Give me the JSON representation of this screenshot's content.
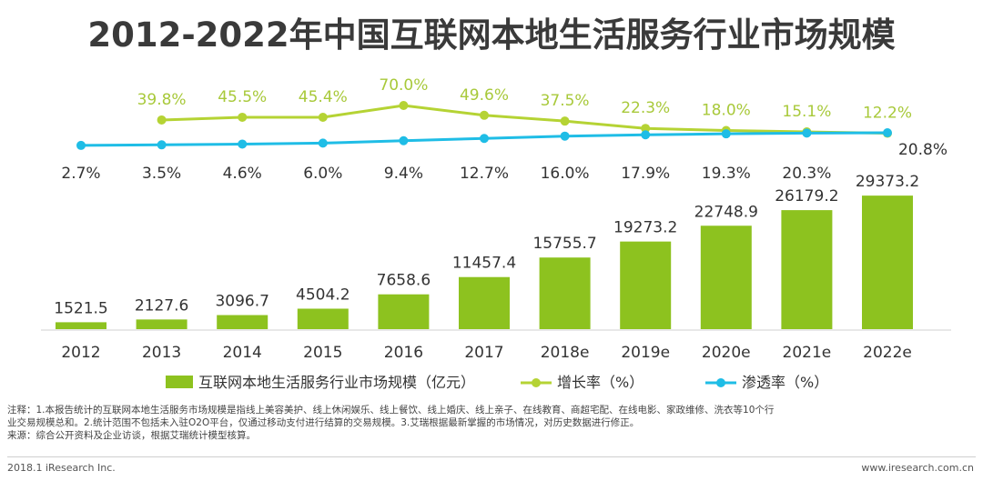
{
  "title": "2012-2022年中国互联网本地生活服务行业市场规模",
  "colors": {
    "bar": "#8dc21f",
    "growth_line": "#b5d334",
    "penetration_line": "#1fbde6",
    "growth_label": "#a8c93a",
    "text": "#333333"
  },
  "chart_data": {
    "type": "bar",
    "categories": [
      "2012",
      "2013",
      "2014",
      "2015",
      "2016",
      "2017",
      "2018e",
      "2019e",
      "2020e",
      "2021e",
      "2022e"
    ],
    "series": [
      {
        "name": "互联网本地生活服务行业市场规模（亿元）",
        "type": "bar",
        "values": [
          1521.5,
          2127.6,
          3096.7,
          4504.2,
          7658.6,
          11457.4,
          15755.7,
          19273.2,
          22748.9,
          26179.2,
          29373.2
        ],
        "labels": [
          "1521.5",
          "2127.6",
          "3096.7",
          "4504.2",
          "7658.6",
          "11457.4",
          "15755.7",
          "19273.2",
          "22748.9",
          "26179.2",
          "29373.2"
        ]
      },
      {
        "name": "增长率（%）",
        "type": "line",
        "values": [
          null,
          39.8,
          45.5,
          45.4,
          70.0,
          49.6,
          37.5,
          22.3,
          18.0,
          15.1,
          12.2
        ],
        "labels": [
          "",
          "39.8%",
          "45.5%",
          "45.4%",
          "70.0%",
          "49.6%",
          "37.5%",
          "22.3%",
          "18.0%",
          "15.1%",
          "12.2%"
        ]
      },
      {
        "name": "渗透率（%）",
        "type": "line",
        "values": [
          2.7,
          3.5,
          4.6,
          6.0,
          9.4,
          12.7,
          16.0,
          17.9,
          19.3,
          20.3,
          20.8
        ],
        "labels": [
          "2.7%",
          "3.5%",
          "4.6%",
          "6.0%",
          "9.4%",
          "12.7%",
          "16.0%",
          "17.9%",
          "19.3%",
          "20.3%",
          "20.8%"
        ]
      }
    ],
    "legend": [
      "互联网本地生活服务行业市场规模（亿元）",
      "增长率（%）",
      "渗透率（%）"
    ],
    "legend_placement": "bottom",
    "grid": false,
    "ylim": [
      0,
      30000
    ]
  },
  "notes": [
    "注释：1.本报告统计的互联网本地生活服务市场规模是指线上美容美护、线上休闲娱乐、线上餐饮、线上婚庆、线上亲子、在线教育、商超宅配、在线电影、家政维修、洗衣等10个行",
    "业交易规模总和。2.统计范围不包括未入驻O2O平台，仅通过移动支付进行结算的交易规模。3.艾瑞根据最新掌握的市场情况，对历史数据进行修正。",
    "来源：综合公开资料及企业访谈，根据艾瑞统计模型核算。"
  ],
  "footer": {
    "left": "2018.1 iResearch Inc.",
    "right": "www.iresearch.com.cn"
  }
}
